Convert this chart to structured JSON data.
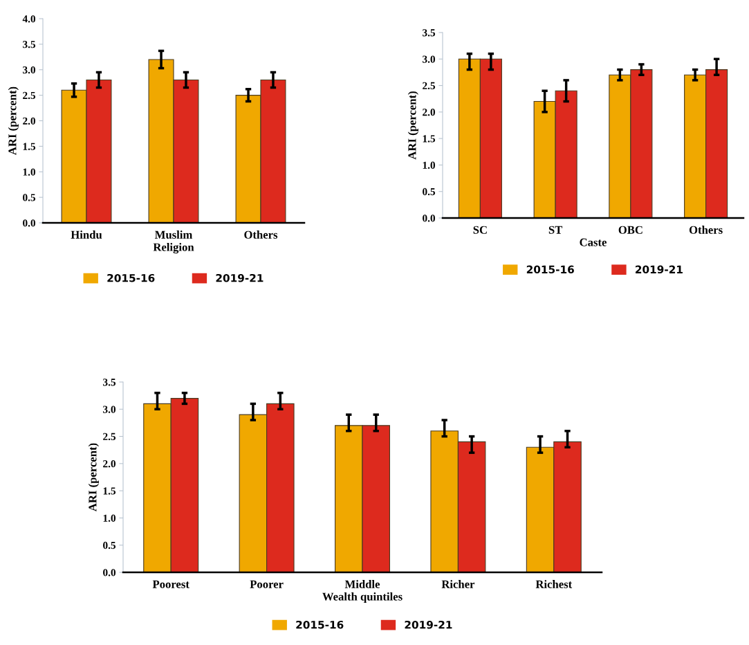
{
  "chart_data": [
    {
      "type": "bar",
      "xlabel": "Religion",
      "ylabel": "ARI (percent)",
      "categories": [
        "Hindu",
        "Muslim",
        "Others"
      ],
      "ylim": [
        0,
        4
      ],
      "yticks": [
        {
          "value": 0,
          "label": "0.0"
        },
        {
          "value": 0.5,
          "label": "0.5"
        },
        {
          "value": 1,
          "label": "1.0"
        },
        {
          "value": 1.5,
          "label": "1.5"
        },
        {
          "value": 2,
          "label": "2.0"
        },
        {
          "value": 2.5,
          "label": "2.5"
        },
        {
          "value": 3,
          "label": "3.0"
        },
        {
          "value": 3.5,
          "label": "3.5"
        },
        {
          "value": 4,
          "label": "4.0"
        }
      ],
      "legend": "bottom",
      "grid": false,
      "series": [
        {
          "name": "2015-16",
          "color": "#f0a800",
          "values": [
            2.6,
            3.2,
            2.5
          ],
          "errors": [
            [
              2.47,
              2.73
            ],
            [
              3.03,
              3.37
            ],
            [
              2.38,
              2.62
            ]
          ]
        },
        {
          "name": "2019-21",
          "color": "#dd2a1e",
          "values": [
            2.8,
            2.8,
            2.8
          ],
          "errors": [
            [
              2.65,
              2.95
            ],
            [
              2.65,
              2.95
            ],
            [
              2.65,
              2.95
            ]
          ]
        }
      ]
    },
    {
      "type": "bar",
      "xlabel": "Caste",
      "ylabel": "ARI (percent)",
      "categories": [
        "SC",
        "ST",
        "OBC",
        "Others"
      ],
      "ylim": [
        0,
        3.5
      ],
      "yticks": [
        {
          "value": 0,
          "label": "0.0"
        },
        {
          "value": 0.5,
          "label": "0.5"
        },
        {
          "value": 1,
          "label": "1.0"
        },
        {
          "value": 1.5,
          "label": "1.5"
        },
        {
          "value": 2,
          "label": "2.0"
        },
        {
          "value": 2.5,
          "label": "2.5"
        },
        {
          "value": 3,
          "label": "3.0"
        },
        {
          "value": 3.5,
          "label": "3.5"
        }
      ],
      "legend": "bottom",
      "grid": false,
      "series": [
        {
          "name": "2015-16",
          "color": "#f0a800",
          "values": [
            3.0,
            2.2,
            2.7,
            2.7
          ],
          "errors": [
            [
              2.8,
              3.1
            ],
            [
              2.0,
              2.4
            ],
            [
              2.6,
              2.8
            ],
            [
              2.6,
              2.8
            ]
          ]
        },
        {
          "name": "2019-21",
          "color": "#dd2a1e",
          "values": [
            3.0,
            2.4,
            2.8,
            2.8
          ],
          "errors": [
            [
              2.8,
              3.1
            ],
            [
              2.2,
              2.6
            ],
            [
              2.7,
              2.9
            ],
            [
              2.7,
              3.0
            ]
          ]
        }
      ]
    },
    {
      "type": "bar",
      "xlabel": "Wealth quintiles",
      "ylabel": "ARI (percent)",
      "categories": [
        "Poorest",
        "Poorer",
        "Middle",
        "Richer",
        "Richest"
      ],
      "ylim": [
        0,
        3.5
      ],
      "yticks": [
        {
          "value": 0,
          "label": "0.0"
        },
        {
          "value": 0.5,
          "label": "0.5"
        },
        {
          "value": 1,
          "label": "1.0"
        },
        {
          "value": 1.5,
          "label": "1.5"
        },
        {
          "value": 2,
          "label": "2.0"
        },
        {
          "value": 2.5,
          "label": "2.5"
        },
        {
          "value": 3,
          "label": "3.0"
        },
        {
          "value": 3.5,
          "label": "3.5"
        }
      ],
      "legend": "bottom",
      "grid": false,
      "series": [
        {
          "name": "2015-16",
          "color": "#f0a800",
          "values": [
            3.1,
            2.9,
            2.7,
            2.6,
            2.3
          ],
          "errors": [
            [
              3.0,
              3.3
            ],
            [
              2.8,
              3.1
            ],
            [
              2.6,
              2.9
            ],
            [
              2.5,
              2.8
            ],
            [
              2.2,
              2.5
            ]
          ]
        },
        {
          "name": "2019-21",
          "color": "#dd2a1e",
          "values": [
            3.2,
            3.1,
            2.7,
            2.4,
            2.4
          ],
          "errors": [
            [
              3.1,
              3.3
            ],
            [
              3.0,
              3.3
            ],
            [
              2.6,
              2.9
            ],
            [
              2.2,
              2.5
            ],
            [
              2.3,
              2.6
            ]
          ]
        }
      ]
    }
  ]
}
